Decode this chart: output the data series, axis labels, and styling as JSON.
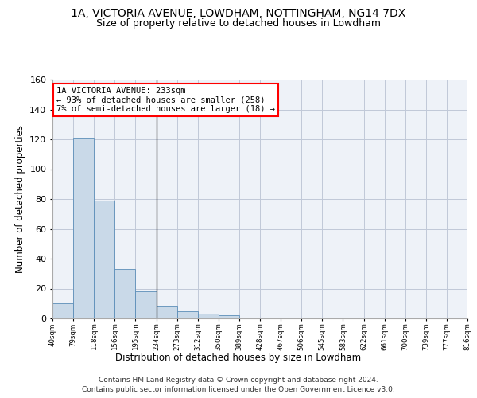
{
  "title": "1A, VICTORIA AVENUE, LOWDHAM, NOTTINGHAM, NG14 7DX",
  "subtitle": "Size of property relative to detached houses in Lowdham",
  "xlabel": "Distribution of detached houses by size in Lowdham",
  "ylabel": "Number of detached properties",
  "bin_labels": [
    "40sqm",
    "79sqm",
    "118sqm",
    "156sqm",
    "195sqm",
    "234sqm",
    "273sqm",
    "312sqm",
    "350sqm",
    "389sqm",
    "428sqm",
    "467sqm",
    "506sqm",
    "545sqm",
    "583sqm",
    "622sqm",
    "661sqm",
    "700sqm",
    "739sqm",
    "777sqm",
    "816sqm"
  ],
  "bar_heights": [
    10,
    121,
    79,
    33,
    18,
    8,
    5,
    3,
    2,
    0,
    0,
    0,
    0,
    0,
    0,
    0,
    0,
    0,
    0,
    0
  ],
  "bar_color": "#c9d9e8",
  "bar_edge_color": "#5b8db8",
  "vline_x": 5,
  "vline_color": "#333333",
  "annotation_line1": "1A VICTORIA AVENUE: 233sqm",
  "annotation_line2": "← 93% of detached houses are smaller (258)",
  "annotation_line3": "7% of semi-detached houses are larger (18) →",
  "annotation_box_color": "#ff0000",
  "ylim": [
    0,
    160
  ],
  "yticks": [
    0,
    20,
    40,
    60,
    80,
    100,
    120,
    140,
    160
  ],
  "grid_color": "#c0c8d8",
  "background_color": "#eef2f8",
  "footer_line1": "Contains HM Land Registry data © Crown copyright and database right 2024.",
  "footer_line2": "Contains public sector information licensed under the Open Government Licence v3.0.",
  "title_fontsize": 10,
  "subtitle_fontsize": 9,
  "xlabel_fontsize": 8.5,
  "ylabel_fontsize": 8.5,
  "annotation_fontsize": 7.5,
  "footer_fontsize": 6.5
}
